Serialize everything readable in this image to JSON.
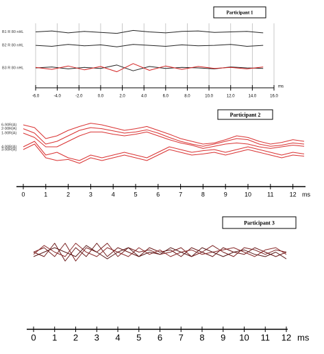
{
  "chart_data": [
    {
      "type": "line",
      "title": "Participant 1",
      "xlabel": "ms",
      "grid": true,
      "x": [
        -6,
        -4.5,
        -3,
        -1.5,
        0,
        1.5,
        3,
        4.5,
        6,
        7.5,
        9,
        10.5,
        12,
        13.5,
        15
      ],
      "xlim": [
        -6,
        16
      ],
      "ylim": [
        0,
        12
      ],
      "xticks": [
        {
          "value": -6,
          "label": "-6.0"
        },
        {
          "value": -4,
          "label": "-4.0"
        },
        {
          "value": -2,
          "label": "-2.0"
        },
        {
          "value": 0,
          "label": "0.0"
        },
        {
          "value": 2,
          "label": "2.0"
        },
        {
          "value": 4,
          "label": "4.0"
        },
        {
          "value": 6,
          "label": "6.0"
        },
        {
          "value": 8,
          "label": "8.0"
        },
        {
          "value": 10,
          "label": "10.0"
        },
        {
          "value": 12,
          "label": "12.0"
        },
        {
          "value": 14,
          "label": "14.0"
        },
        {
          "value": 16,
          "label": "16.0"
        }
      ],
      "series": [
        {
          "name": "B1 R 80 nHL",
          "color": "#222222",
          "values": [
            10.5,
            10.7,
            10.3,
            10.6,
            10.4,
            10.2,
            10.8,
            10.5,
            10.3,
            10.6,
            10.7,
            10.4,
            10.5,
            10.6,
            10.3
          ]
        },
        {
          "name": "B2 R 80 nHL",
          "color": "#222222",
          "values": [
            7.7,
            7.5,
            7.9,
            7.6,
            7.8,
            7.4,
            7.9,
            7.7,
            7.5,
            7.8,
            7.6,
            7.7,
            7.9,
            7.5,
            7.7
          ]
        },
        {
          "name": "B3 R 80 nHL",
          "color": "#222222",
          "values": [
            3,
            3.2,
            2.8,
            3.1,
            2.9,
            3.6,
            2.4,
            3.3,
            2.9,
            3.1,
            3,
            2.8,
            3.2,
            3,
            2.9
          ]
        },
        {
          "color": "#d42020",
          "values": [
            3.1,
            2.7,
            3.4,
            2.6,
            3.3,
            2.2,
            3.9,
            2.5,
            3.4,
            2.7,
            3.3,
            2.9,
            3.1,
            2.8,
            3.2
          ]
        }
      ]
    },
    {
      "type": "line",
      "title": "Participant 2",
      "xlabel": "ms",
      "grid": false,
      "x": [
        0,
        0.5,
        1,
        1.5,
        2,
        2.5,
        3,
        3.5,
        4,
        4.5,
        5,
        5.5,
        6,
        6.5,
        7,
        7.5,
        8,
        8.5,
        9,
        9.5,
        10,
        10.5,
        11,
        11.5,
        12,
        12.5
      ],
      "xlim": [
        0,
        12.5
      ],
      "ylim": [
        0,
        10
      ],
      "xticks": [
        0,
        1,
        2,
        3,
        4,
        5,
        6,
        7,
        8,
        9,
        10,
        11,
        12
      ],
      "series": [
        {
          "name": "6-90R(A)",
          "color": "#d93030",
          "values": [
            8.5,
            8,
            6,
            6.5,
            7.5,
            8.2,
            8.8,
            8.5,
            8,
            7.5,
            7.8,
            8.2,
            7.5,
            6.8,
            6,
            5.5,
            5,
            5.2,
            5.8,
            6.5,
            6.2,
            5.5,
            5,
            5.3,
            5.8,
            5.5
          ]
        },
        {
          "name": "2-90R(A)",
          "color": "#d93030",
          "values": [
            7.8,
            7,
            5,
            5.5,
            6.5,
            7.5,
            8,
            7.8,
            7.4,
            7,
            7.2,
            7.6,
            7,
            6.2,
            5.5,
            5,
            4.6,
            5,
            5.5,
            6,
            5.8,
            5,
            4.6,
            4.8,
            5.2,
            5
          ]
        },
        {
          "name": "1-90R(A)",
          "color": "#d93030",
          "values": [
            7,
            6.2,
            4.5,
            4.5,
            5.5,
            6.5,
            7.2,
            7.2,
            6.8,
            6.5,
            6.8,
            7.2,
            6.5,
            5.8,
            5.2,
            4.8,
            4.2,
            4.6,
            5,
            5.2,
            5,
            4.5,
            4.2,
            4.5,
            4.8,
            4.6
          ]
        },
        {
          "name": "4-90R(A)",
          "color": "#d93030",
          "values": [
            4.5,
            5.5,
            3,
            3.5,
            2.5,
            2,
            3,
            2.5,
            3,
            3.5,
            3,
            2.5,
            3.5,
            4.5,
            4,
            3.5,
            3.8,
            4,
            3.5,
            4,
            4.5,
            4,
            3.5,
            3,
            3.5,
            3.2
          ]
        },
        {
          "name": "3-90R(A)",
          "color": "#d93030",
          "values": [
            4,
            5,
            2.5,
            2,
            2.2,
            1.5,
            2.5,
            2,
            2.5,
            3,
            2.5,
            2,
            3,
            4,
            3.5,
            3,
            3.2,
            3.5,
            3,
            3.5,
            4,
            3.5,
            3,
            2.5,
            3,
            2.8
          ]
        }
      ]
    },
    {
      "type": "line",
      "title": "Participant 3",
      "xlabel": "ms",
      "grid": false,
      "x": [
        0,
        0.5,
        1,
        1.5,
        2,
        2.5,
        3,
        3.5,
        4,
        4.5,
        5,
        5.5,
        6,
        6.5,
        7,
        7.5,
        8,
        8.5,
        9,
        9.5,
        10,
        10.5,
        11,
        11.5,
        12
      ],
      "xlim": [
        0,
        12
      ],
      "ylim": [
        0,
        10
      ],
      "xticks": [
        0,
        1,
        2,
        3,
        4,
        5,
        6,
        7,
        8,
        9,
        10,
        11,
        12
      ],
      "series": [
        {
          "color": "#7a2020",
          "values": [
            5,
            6,
            4,
            7,
            3,
            6,
            5,
            7,
            4,
            6,
            5,
            5.5,
            4.5,
            5,
            6,
            4,
            5,
            6.5,
            5,
            4,
            6,
            5.5,
            4.5,
            5.5,
            5
          ]
        },
        {
          "color": "#6a1818",
          "values": [
            5,
            4,
            7,
            3,
            6,
            4,
            7,
            4,
            6,
            5,
            4,
            6,
            5,
            5.5,
            4,
            6,
            5,
            4,
            6,
            5,
            4.5,
            6,
            5,
            4,
            5
          ]
        },
        {
          "color": "#8a2a2a",
          "values": [
            4.5,
            6.5,
            5,
            4,
            7,
            5,
            4,
            6,
            5,
            4,
            6,
            4.5,
            5.5,
            4,
            5,
            5.5,
            4.5,
            5,
            5.5,
            6,
            5,
            4,
            5.5,
            6,
            4.5
          ]
        },
        {
          "color": "#5a1a1a",
          "values": [
            4,
            5,
            6,
            5,
            4,
            6.5,
            5,
            3.5,
            5,
            6,
            4,
            5,
            4.5,
            6,
            5,
            4,
            6,
            5,
            4,
            5,
            5.5,
            4.5,
            4,
            5,
            3.5
          ]
        }
      ]
    }
  ]
}
